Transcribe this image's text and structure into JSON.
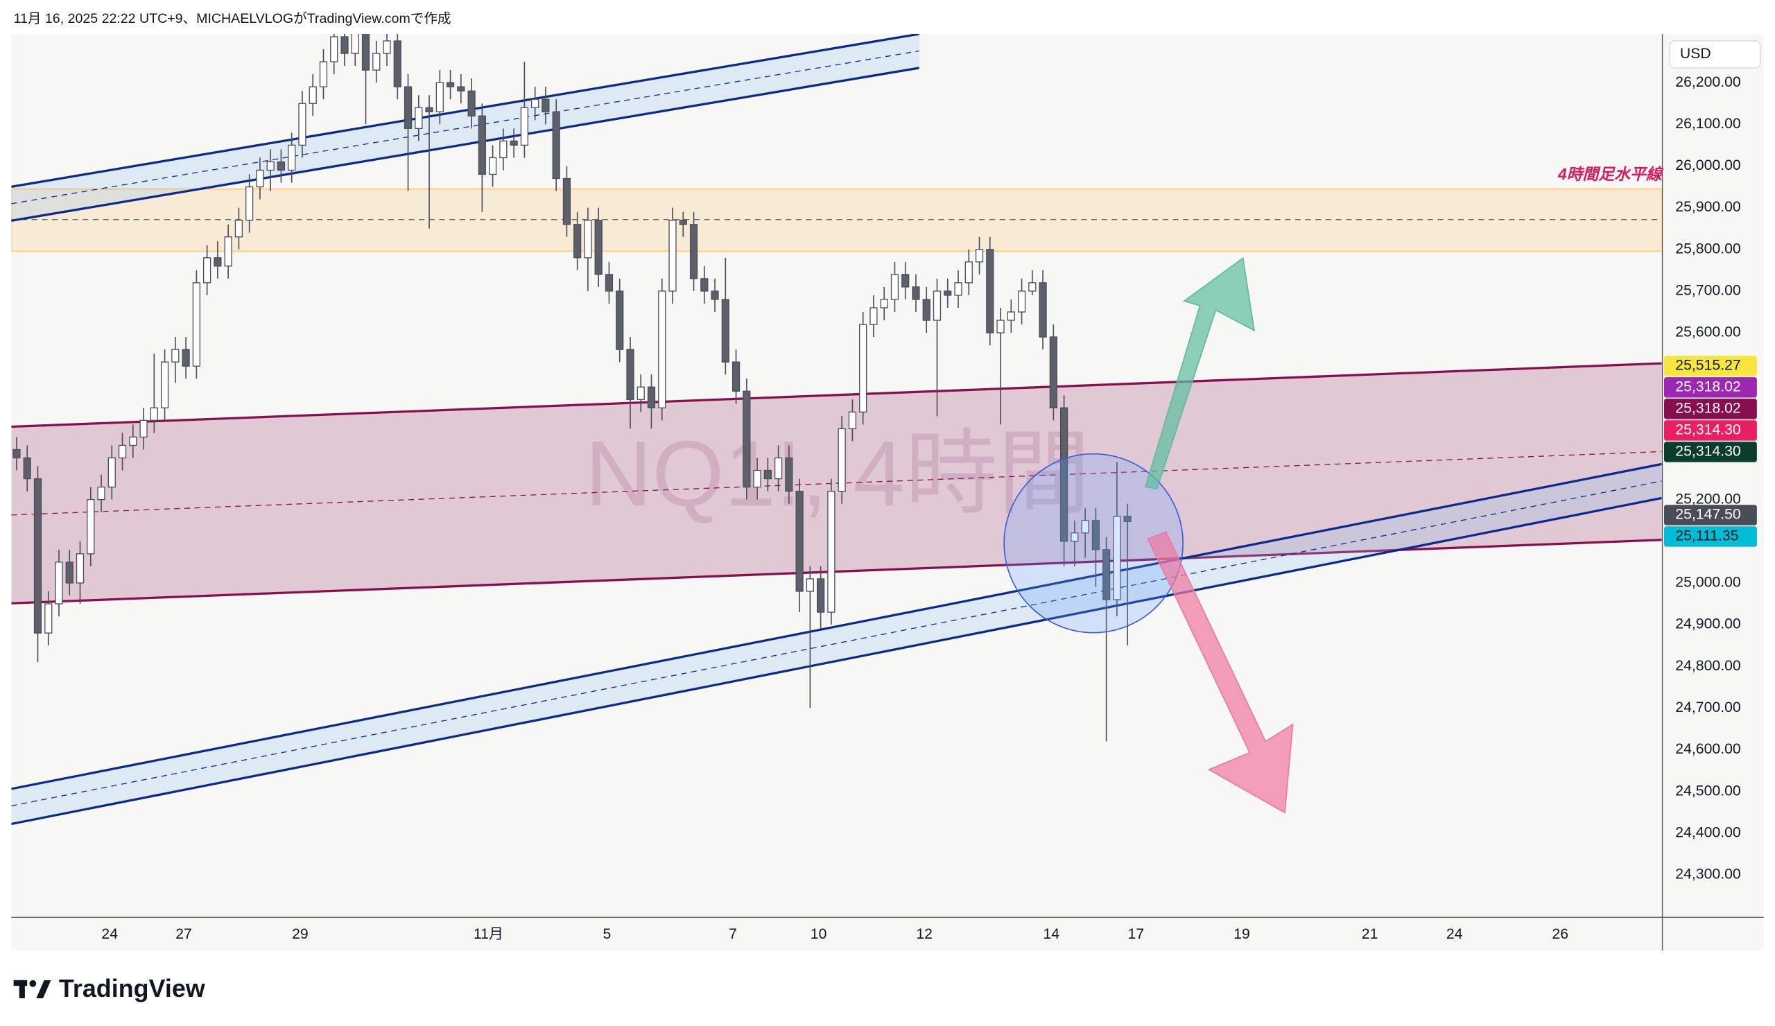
{
  "chart_data": {
    "type": "candlestick",
    "title": "11月 16, 2025 22:22 UTC+9、MICHAELVLOGがTradingView.comで作成",
    "watermark": "NQ1!, 4時間",
    "annotation": "4時間足水平線",
    "currency": "USD",
    "branding": "TradingView",
    "up_color": "#ffffff",
    "down_color": "#5d606b",
    "wick_color": "#4a4d57",
    "ylim": [
      24199.5,
      26316.7
    ],
    "yticks": [
      {
        "value": 24300,
        "label": "24,300.00"
      },
      {
        "value": 24400,
        "label": "24,400.00"
      },
      {
        "value": 24500,
        "label": "24,500.00"
      },
      {
        "value": 24600,
        "label": "24,600.00"
      },
      {
        "value": 24700,
        "label": "24,700.00"
      },
      {
        "value": 24800,
        "label": "24,800.00"
      },
      {
        "value": 24900,
        "label": "24,900.00"
      },
      {
        "value": 25000,
        "label": "25,000.00"
      },
      {
        "value": 25200,
        "label": "25,200.00"
      },
      {
        "value": 25600,
        "label": "25,600.00"
      },
      {
        "value": 25700,
        "label": "25,700.00"
      },
      {
        "value": 25800,
        "label": "25,800.00"
      },
      {
        "value": 25900,
        "label": "25,900.00"
      },
      {
        "value": 26000,
        "label": "26,000.00"
      },
      {
        "value": 26100,
        "label": "26,100.00"
      },
      {
        "value": 26200,
        "label": "26,200.00"
      }
    ],
    "xlim": [
      0,
      156
    ],
    "xticks": [
      {
        "value": 9.3,
        "label": "24"
      },
      {
        "value": 16.3,
        "label": "27"
      },
      {
        "value": 27.3,
        "label": "29"
      },
      {
        "value": 45.1,
        "label": "11月"
      },
      {
        "value": 56.3,
        "label": "5"
      },
      {
        "value": 68.2,
        "label": "7"
      },
      {
        "value": 76.3,
        "label": "10"
      },
      {
        "value": 86.3,
        "label": "12"
      },
      {
        "value": 98.3,
        "label": "14"
      },
      {
        "value": 106.3,
        "label": "17"
      },
      {
        "value": 116.3,
        "label": "19"
      },
      {
        "value": 128.4,
        "label": "21"
      },
      {
        "value": 136.4,
        "label": "24"
      },
      {
        "value": 146.4,
        "label": "26"
      }
    ],
    "price_labels": [
      {
        "value": 25515.27,
        "label": "25,515.27",
        "color": "#f7e63e",
        "text_color": "#131722"
      },
      {
        "value": 25318.02,
        "label": "25,318.02",
        "color": "#9c27b0",
        "text_color": "#ffffff"
      },
      {
        "value": 25318.02,
        "label": "25,318.02",
        "color": "#880e4f",
        "text_color": "#ffffff"
      },
      {
        "value": 25314.3,
        "label": "25,314.30",
        "color": "#e91e63",
        "text_color": "#ffffff"
      },
      {
        "value": 25314.3,
        "label": "25,314.30",
        "color": "#0b3d2e",
        "text_color": "#ffffff"
      },
      {
        "value": 25147.5,
        "label": "25,147.50",
        "color": "#4a4d57",
        "text_color": "#ffffff"
      },
      {
        "value": 25111.35,
        "label": "25,111.35",
        "color": "#00bcd4",
        "text_color": "#131722"
      }
    ],
    "open": [
      25320,
      25300,
      25250,
      24880,
      24950,
      25050,
      25000,
      25070,
      25200,
      25230,
      25300,
      25330,
      25350,
      25390,
      25420,
      25530,
      25560,
      25520,
      25720,
      25780,
      25760,
      25830,
      25870,
      25950,
      25990,
      26010,
      25990,
      26050,
      26150,
      26190,
      26250,
      26310,
      26270,
      26320,
      26230,
      26270,
      26300,
      26190,
      26090,
      26140,
      26130,
      26200,
      26190,
      26180,
      26120,
      25980,
      26020,
      26060,
      26050,
      26140,
      26160,
      26130,
      25970,
      25860,
      25780,
      25870,
      25740,
      25700,
      25560,
      25440,
      25470,
      25420,
      25700,
      25870,
      25860,
      25730,
      25700,
      25680,
      25530,
      25460,
      25230,
      25270,
      25250,
      25300,
      25220,
      24980,
      25010,
      24930,
      25220,
      25370,
      25410,
      25620,
      25660,
      25680,
      25740,
      25710,
      25680,
      25630,
      25700,
      25690,
      25720,
      25770,
      25800,
      25600,
      25630,
      25650,
      25700,
      25720,
      25590,
      25420,
      25100,
      25120,
      25150,
      25080,
      24960,
      25160
    ],
    "high": [
      25350,
      25330,
      25280,
      24980,
      25080,
      25080,
      25100,
      25230,
      25260,
      25330,
      25360,
      25380,
      25420,
      25550,
      25560,
      25590,
      25590,
      25750,
      25810,
      25820,
      25860,
      25900,
      25980,
      26020,
      26040,
      26040,
      26080,
      26180,
      26220,
      26280,
      26340,
      26340,
      26350,
      26350,
      26300,
      26330,
      26330,
      26220,
      26170,
      26170,
      26230,
      26230,
      26220,
      26210,
      26150,
      26050,
      26090,
      26090,
      26250,
      26190,
      26190,
      26160,
      26000,
      25890,
      25900,
      25900,
      25770,
      25730,
      25590,
      25500,
      25500,
      25730,
      25900,
      25890,
      25890,
      25760,
      25730,
      25780,
      25560,
      25490,
      25300,
      25300,
      25330,
      25330,
      25250,
      25040,
      25040,
      25250,
      25400,
      25440,
      25650,
      25690,
      25710,
      25770,
      25770,
      25740,
      25710,
      25730,
      25730,
      25750,
      25800,
      25830,
      25830,
      25660,
      25680,
      25730,
      25750,
      25750,
      25620,
      25450,
      25150,
      25180,
      25180,
      25110,
      25290,
      25190
    ],
    "low": [
      25270,
      25220,
      24810,
      24850,
      24920,
      24970,
      24950,
      25040,
      25170,
      25200,
      25270,
      25300,
      25320,
      25360,
      25390,
      25480,
      25490,
      25490,
      25690,
      25730,
      25730,
      25800,
      25840,
      25920,
      25940,
      25960,
      25960,
      26020,
      26120,
      26160,
      26220,
      26240,
      26240,
      26100,
      26200,
      26240,
      26160,
      25940,
      26060,
      25850,
      26100,
      26160,
      26150,
      26090,
      25890,
      25950,
      25990,
      26020,
      26020,
      26110,
      26100,
      25940,
      25830,
      25750,
      25700,
      25710,
      25670,
      25530,
      25370,
      25410,
      25370,
      25390,
      25670,
      25830,
      25700,
      25670,
      25650,
      25500,
      25430,
      25200,
      25200,
      25220,
      25220,
      25190,
      24930,
      24700,
      24890,
      24900,
      25190,
      25340,
      25380,
      25590,
      25630,
      25650,
      25680,
      25650,
      25600,
      25400,
      25660,
      25660,
      25690,
      25740,
      25570,
      25380,
      25600,
      25620,
      25690,
      25560,
      25390,
      25040,
      25040,
      25060,
      24990,
      24620,
      24920,
      24850
    ],
    "close": [
      25300,
      25250,
      24880,
      24950,
      25050,
      25000,
      25070,
      25200,
      25230,
      25300,
      25330,
      25350,
      25390,
      25420,
      25530,
      25560,
      25520,
      25720,
      25780,
      25760,
      25830,
      25870,
      25950,
      25990,
      26010,
      25990,
      26050,
      26150,
      26190,
      26250,
      26310,
      26270,
      26320,
      26230,
      26270,
      26300,
      26190,
      26090,
      26140,
      26130,
      26200,
      26190,
      26180,
      26120,
      25980,
      26020,
      26060,
      26050,
      26140,
      26160,
      26130,
      25970,
      25860,
      25780,
      25870,
      25740,
      25700,
      25560,
      25440,
      25470,
      25420,
      25700,
      25870,
      25860,
      25730,
      25700,
      25680,
      25530,
      25460,
      25230,
      25270,
      25250,
      25300,
      25220,
      24980,
      25010,
      24930,
      25220,
      25370,
      25410,
      25620,
      25660,
      25680,
      25740,
      25710,
      25680,
      25630,
      25700,
      25690,
      25720,
      25770,
      25800,
      25600,
      25630,
      25650,
      25700,
      25720,
      25590,
      25420,
      25100,
      25120,
      25150,
      25080,
      24960,
      25160,
      25147.5
    ]
  }
}
